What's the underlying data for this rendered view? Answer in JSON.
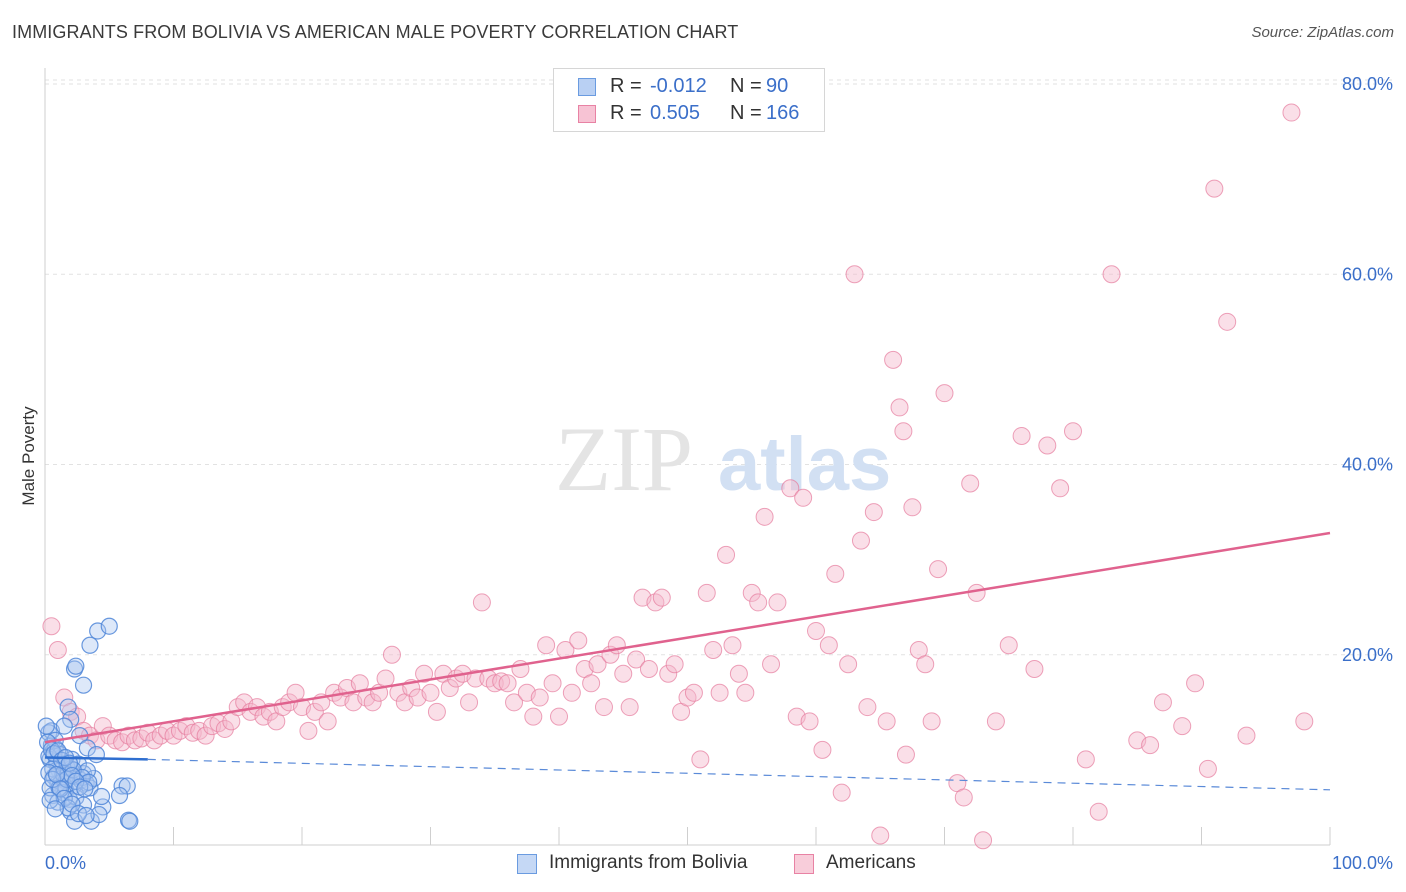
{
  "title": "IMMIGRANTS FROM BOLIVIA VS AMERICAN MALE POVERTY CORRELATION CHART",
  "source": "Source: ZipAtlas.com",
  "watermark": {
    "zip": "ZIP",
    "atlas": "atlas"
  },
  "legend": {
    "r_label": "R =",
    "n_label": "N =",
    "rows": [
      {
        "r": "-0.012",
        "n": "90",
        "color": "#6a9be0",
        "fill": "#b9d0f3"
      },
      {
        "r": "0.505",
        "n": "166",
        "color": "#e882a4",
        "fill": "#f7c3d4"
      }
    ]
  },
  "bottom_legend": [
    {
      "label": "Immigrants from Bolivia",
      "color": "#6a9be0",
      "fill": "#c5d8f5"
    },
    {
      "label": "Americans",
      "color": "#e882a4",
      "fill": "#f8cdda"
    }
  ],
  "chart_data": {
    "type": "scatter",
    "title": "IMMIGRANTS FROM BOLIVIA VS AMERICAN MALE POVERTY CORRELATION CHART",
    "xlabel": "",
    "ylabel": "Male Poverty",
    "xlim": [
      0,
      100
    ],
    "ylim": [
      0,
      80
    ],
    "x_tick_labels": [
      "0.0%",
      "100.0%"
    ],
    "y_ticks": [
      20,
      40,
      60,
      80
    ],
    "y_tick_labels": [
      "20.0%",
      "40.0%",
      "60.0%",
      "80.0%"
    ],
    "grid": true,
    "legend_position": "top-center",
    "series": [
      {
        "name": "Immigrants from Bolivia",
        "color": "#4f86d8",
        "fill": "#a9c6f0",
        "trend": {
          "x": [
            0,
            8
          ],
          "y": [
            9.2,
            9.0
          ],
          "dashed_x": [
            8,
            100
          ],
          "dashed_y": [
            9.0,
            5.8
          ]
        },
        "points": [
          [
            0.3,
            11.8
          ],
          [
            0.5,
            10.5
          ],
          [
            0.6,
            9.8
          ],
          [
            0.8,
            10.2
          ],
          [
            0.4,
            9.0
          ],
          [
            0.9,
            8.5
          ],
          [
            1.1,
            7.8
          ],
          [
            0.7,
            7.2
          ],
          [
            1.3,
            7.0
          ],
          [
            1.5,
            6.8
          ],
          [
            1.0,
            6.5
          ],
          [
            1.8,
            7.5
          ],
          [
            2.0,
            8.0
          ],
          [
            2.2,
            6.2
          ],
          [
            1.6,
            5.8
          ],
          [
            2.5,
            7.2
          ],
          [
            2.8,
            6.8
          ],
          [
            3.0,
            7.5
          ],
          [
            3.2,
            6.5
          ],
          [
            1.4,
            5.5
          ],
          [
            0.6,
            5.2
          ],
          [
            1.9,
            4.8
          ],
          [
            2.4,
            5.0
          ],
          [
            3.5,
            6.0
          ],
          [
            3.8,
            7.0
          ],
          [
            0.9,
            8.8
          ],
          [
            1.2,
            9.5
          ],
          [
            0.5,
            12.0
          ],
          [
            0.8,
            11.0
          ],
          [
            1.7,
            8.2
          ],
          [
            2.1,
            9.0
          ],
          [
            2.6,
            8.5
          ],
          [
            3.3,
            7.8
          ],
          [
            0.4,
            6.0
          ],
          [
            1.0,
            4.5
          ],
          [
            2.0,
            3.5
          ],
          [
            2.3,
            2.5
          ],
          [
            3.0,
            4.2
          ],
          [
            3.6,
            2.5
          ],
          [
            4.5,
            4.0
          ],
          [
            4.2,
            3.2
          ],
          [
            6.0,
            6.2
          ],
          [
            6.4,
            6.2
          ],
          [
            6.5,
            2.6
          ],
          [
            6.6,
            2.5
          ],
          [
            2.3,
            18.5
          ],
          [
            2.4,
            18.8
          ],
          [
            3.0,
            16.8
          ],
          [
            3.5,
            21.0
          ],
          [
            4.1,
            22.5
          ],
          [
            5.0,
            23.0
          ],
          [
            1.8,
            14.5
          ],
          [
            2.0,
            13.2
          ],
          [
            1.5,
            12.5
          ],
          [
            2.7,
            11.5
          ],
          [
            3.3,
            10.2
          ],
          [
            4.0,
            9.5
          ],
          [
            0.3,
            9.3
          ],
          [
            0.6,
            8.0
          ],
          [
            1.1,
            6.0
          ],
          [
            1.4,
            7.5
          ],
          [
            1.7,
            6.9
          ],
          [
            2.2,
            7.9
          ],
          [
            2.9,
            7.1
          ],
          [
            3.4,
            6.6
          ],
          [
            0.2,
            10.8
          ],
          [
            0.5,
            10.0
          ],
          [
            0.7,
            9.6
          ],
          [
            1.0,
            9.9
          ],
          [
            1.3,
            8.9
          ],
          [
            1.6,
            9.2
          ],
          [
            1.9,
            8.6
          ],
          [
            2.1,
            7.3
          ],
          [
            2.4,
            6.7
          ],
          [
            2.7,
            6.1
          ],
          [
            3.1,
            5.9
          ],
          [
            0.3,
            7.6
          ],
          [
            0.6,
            6.9
          ],
          [
            0.9,
            7.4
          ],
          [
            1.2,
            5.9
          ],
          [
            1.5,
            4.9
          ],
          [
            1.8,
            3.9
          ],
          [
            2.1,
            4.3
          ],
          [
            2.6,
            3.3
          ],
          [
            3.2,
            3.1
          ],
          [
            0.4,
            4.7
          ],
          [
            0.8,
            3.8
          ],
          [
            4.4,
            5.1
          ],
          [
            5.8,
            5.2
          ],
          [
            0.1,
            12.5
          ]
        ]
      },
      {
        "name": "Americans",
        "color": "#e57a9d",
        "fill": "#f5b8cc",
        "trend": {
          "x": [
            0,
            100
          ],
          "y": [
            10.8,
            32.8
          ]
        },
        "points": [
          [
            0.5,
            23.0
          ],
          [
            1.0,
            20.5
          ],
          [
            1.5,
            15.5
          ],
          [
            2.0,
            14.0
          ],
          [
            2.5,
            13.5
          ],
          [
            3.0,
            12.0
          ],
          [
            3.5,
            11.5
          ],
          [
            4.0,
            11.0
          ],
          [
            4.5,
            12.5
          ],
          [
            5.0,
            11.5
          ],
          [
            5.5,
            11.0
          ],
          [
            6.0,
            10.8
          ],
          [
            6.5,
            11.5
          ],
          [
            7.0,
            11.0
          ],
          [
            7.5,
            11.2
          ],
          [
            8.0,
            11.8
          ],
          [
            8.5,
            11.0
          ],
          [
            9.0,
            11.5
          ],
          [
            9.5,
            12.0
          ],
          [
            10.0,
            11.5
          ],
          [
            10.5,
            12.0
          ],
          [
            11.0,
            12.5
          ],
          [
            11.5,
            11.8
          ],
          [
            12.0,
            12.0
          ],
          [
            12.5,
            11.5
          ],
          [
            13.0,
            12.5
          ],
          [
            13.5,
            12.8
          ],
          [
            14.0,
            12.2
          ],
          [
            14.5,
            13.0
          ],
          [
            15.0,
            14.5
          ],
          [
            15.5,
            15.0
          ],
          [
            16.0,
            14.0
          ],
          [
            16.5,
            14.5
          ],
          [
            17.0,
            13.5
          ],
          [
            17.5,
            14.0
          ],
          [
            18.0,
            13.0
          ],
          [
            18.5,
            14.5
          ],
          [
            19.0,
            15.0
          ],
          [
            19.5,
            16.0
          ],
          [
            20.0,
            14.5
          ],
          [
            20.5,
            12.0
          ],
          [
            21.0,
            14.0
          ],
          [
            21.5,
            15.0
          ],
          [
            22.0,
            13.0
          ],
          [
            22.5,
            16.0
          ],
          [
            23.0,
            15.5
          ],
          [
            23.5,
            16.5
          ],
          [
            24.0,
            15.0
          ],
          [
            24.5,
            17.0
          ],
          [
            25.0,
            15.5
          ],
          [
            25.5,
            15.0
          ],
          [
            26.0,
            16.0
          ],
          [
            26.5,
            17.5
          ],
          [
            27.0,
            20.0
          ],
          [
            27.5,
            16.0
          ],
          [
            28.0,
            15.0
          ],
          [
            28.5,
            16.5
          ],
          [
            29.0,
            15.5
          ],
          [
            29.5,
            18.0
          ],
          [
            30.0,
            16.0
          ],
          [
            30.5,
            14.0
          ],
          [
            31.0,
            18.0
          ],
          [
            31.5,
            16.5
          ],
          [
            32.0,
            17.5
          ],
          [
            32.5,
            18.0
          ],
          [
            33.0,
            15.0
          ],
          [
            33.5,
            17.5
          ],
          [
            34.0,
            25.5
          ],
          [
            34.5,
            17.5
          ],
          [
            35.0,
            17.0
          ],
          [
            35.5,
            17.2
          ],
          [
            36.0,
            17.0
          ],
          [
            36.5,
            15.0
          ],
          [
            37.0,
            18.5
          ],
          [
            37.5,
            16.0
          ],
          [
            38.0,
            13.5
          ],
          [
            38.5,
            15.5
          ],
          [
            39.0,
            21.0
          ],
          [
            39.5,
            17.0
          ],
          [
            40.0,
            13.5
          ],
          [
            40.5,
            20.5
          ],
          [
            41.0,
            16.0
          ],
          [
            41.5,
            21.5
          ],
          [
            42.0,
            18.5
          ],
          [
            42.5,
            17.0
          ],
          [
            43.0,
            19.0
          ],
          [
            43.5,
            14.5
          ],
          [
            44.0,
            20.0
          ],
          [
            44.5,
            21.0
          ],
          [
            45.0,
            18.0
          ],
          [
            45.5,
            14.5
          ],
          [
            46.0,
            19.5
          ],
          [
            46.5,
            26.0
          ],
          [
            47.0,
            18.5
          ],
          [
            47.5,
            25.5
          ],
          [
            48.0,
            26.0
          ],
          [
            48.5,
            18.0
          ],
          [
            49.0,
            19.0
          ],
          [
            49.5,
            14.0
          ],
          [
            50.0,
            15.5
          ],
          [
            50.5,
            16.0
          ],
          [
            51.0,
            9.0
          ],
          [
            51.5,
            26.5
          ],
          [
            52.0,
            20.5
          ],
          [
            52.5,
            16.0
          ],
          [
            53.0,
            30.5
          ],
          [
            53.5,
            21.0
          ],
          [
            54.0,
            18.0
          ],
          [
            54.5,
            16.0
          ],
          [
            55.0,
            26.5
          ],
          [
            55.5,
            25.5
          ],
          [
            56.0,
            34.5
          ],
          [
            56.5,
            19.0
          ],
          [
            57.0,
            25.5
          ],
          [
            58.0,
            37.5
          ],
          [
            58.5,
            13.5
          ],
          [
            59.0,
            36.5
          ],
          [
            59.5,
            13.0
          ],
          [
            60.0,
            22.5
          ],
          [
            60.5,
            10.0
          ],
          [
            61.0,
            21.0
          ],
          [
            61.5,
            28.5
          ],
          [
            62.0,
            5.5
          ],
          [
            62.5,
            19.0
          ],
          [
            63.0,
            60.0
          ],
          [
            63.5,
            32.0
          ],
          [
            64.0,
            14.5
          ],
          [
            64.5,
            35.0
          ],
          [
            65.0,
            1.0
          ],
          [
            65.5,
            13.0
          ],
          [
            66.0,
            51.0
          ],
          [
            66.5,
            46.0
          ],
          [
            66.8,
            43.5
          ],
          [
            67.0,
            9.5
          ],
          [
            67.5,
            35.5
          ],
          [
            68.0,
            20.5
          ],
          [
            68.5,
            19.0
          ],
          [
            69.0,
            13.0
          ],
          [
            69.5,
            29.0
          ],
          [
            70.0,
            47.5
          ],
          [
            71.0,
            6.5
          ],
          [
            71.5,
            5.0
          ],
          [
            72.0,
            38.0
          ],
          [
            72.5,
            26.5
          ],
          [
            73.0,
            0.5
          ],
          [
            74.0,
            13.0
          ],
          [
            75.0,
            21.0
          ],
          [
            76.0,
            43.0
          ],
          [
            77.0,
            18.5
          ],
          [
            78.0,
            42.0
          ],
          [
            79.0,
            37.5
          ],
          [
            80.0,
            43.5
          ],
          [
            81.0,
            9.0
          ],
          [
            82.0,
            3.5
          ],
          [
            83.0,
            60.0
          ],
          [
            85.0,
            11.0
          ],
          [
            86.0,
            10.5
          ],
          [
            91.0,
            69.0
          ],
          [
            92.0,
            55.0
          ],
          [
            97.0,
            77.0
          ],
          [
            98.0,
            13.0
          ],
          [
            87.0,
            15.0
          ],
          [
            88.5,
            12.5
          ],
          [
            89.5,
            17.0
          ],
          [
            90.5,
            8.0
          ],
          [
            93.5,
            11.5
          ]
        ]
      }
    ]
  }
}
